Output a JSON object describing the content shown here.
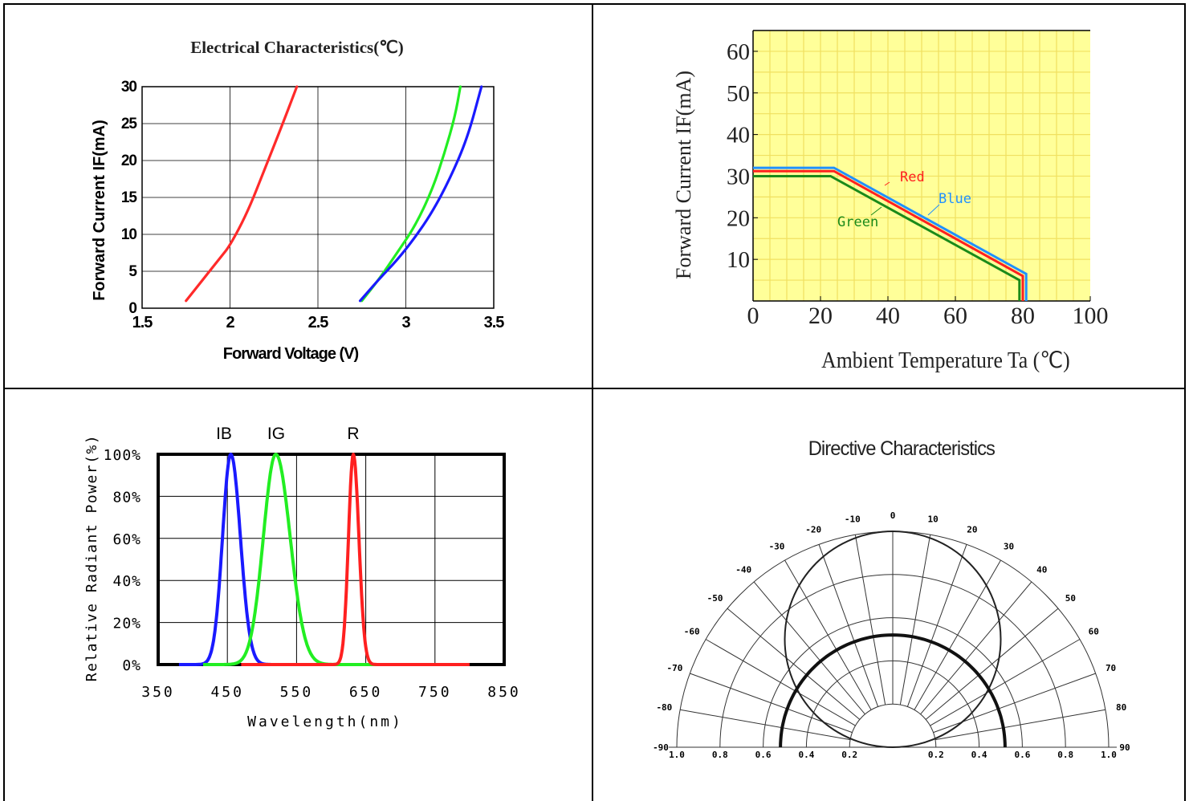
{
  "chart_data": [
    {
      "type": "line",
      "title": "Electrical Characteristics(℃)",
      "xlabel": "Forward Voltage (V)",
      "ylabel": "Forward Current IF(mA)",
      "xlim": [
        1.5,
        3.5
      ],
      "ylim": [
        0,
        30
      ],
      "xticks": [
        "1.5",
        "2",
        "2.5",
        "3",
        "3.5"
      ],
      "yticks": [
        "0",
        "5",
        "10",
        "15",
        "20",
        "25",
        "30"
      ],
      "grid": true,
      "series": [
        {
          "color": "#ff2a2a",
          "x": [
            1.75,
            1.85,
            1.95,
            2.0,
            2.1,
            2.2,
            2.3,
            2.38
          ],
          "y": [
            1,
            4,
            7,
            8.5,
            13,
            19,
            25,
            30
          ]
        },
        {
          "color": "#22ee22",
          "x": [
            2.75,
            2.85,
            2.95,
            3.05,
            3.15,
            3.22,
            3.28,
            3.31
          ],
          "y": [
            1,
            4,
            7.5,
            11,
            16,
            21,
            26,
            30
          ]
        },
        {
          "color": "#1a1aff",
          "x": [
            2.74,
            2.85,
            2.95,
            3.05,
            3.15,
            3.25,
            3.35,
            3.43
          ],
          "y": [
            1,
            4,
            6.5,
            9.5,
            13,
            17.5,
            23,
            30
          ]
        }
      ]
    },
    {
      "type": "line",
      "title": "",
      "xlabel": "Ambient Temperature Ta (℃)",
      "ylabel": "Forward Current IF(mA)",
      "xlim": [
        0,
        100
      ],
      "ylim": [
        0,
        65
      ],
      "xticks": [
        "0",
        "20",
        "40",
        "60",
        "80",
        "100"
      ],
      "yticks": [
        "10",
        "20",
        "30",
        "40",
        "50",
        "60"
      ],
      "grid": true,
      "series": [
        {
          "name": "Red",
          "color": "#ff2020",
          "x": [
            0,
            24,
            80,
            80
          ],
          "y": [
            31.2,
            31.2,
            6,
            0
          ]
        },
        {
          "name": "Blue",
          "color": "#2090ff",
          "x": [
            0,
            24,
            81,
            81
          ],
          "y": [
            32,
            32,
            6.5,
            0
          ]
        },
        {
          "name": "Green",
          "color": "#1a8a1a",
          "x": [
            0,
            23,
            79,
            79
          ],
          "y": [
            30,
            30,
            5,
            0
          ]
        }
      ],
      "annotations": [
        "Red",
        "Blue",
        "Green"
      ]
    },
    {
      "type": "line",
      "title": "",
      "xlabel": "Wavelength(nm)",
      "ylabel": "Relative Radiant Power(%)",
      "xlim": [
        350,
        850
      ],
      "ylim": [
        0,
        100
      ],
      "xticks": [
        "350",
        "450",
        "550",
        "650",
        "750",
        "850"
      ],
      "yticks": [
        "0%",
        "20%",
        "40%",
        "60%",
        "80%",
        "100%"
      ],
      "grid": true,
      "series": [
        {
          "name": "IB",
          "color": "#1a1aff",
          "peak": 455,
          "halfwidth": 12,
          "range": [
            380,
            620
          ]
        },
        {
          "name": "IG",
          "color": "#22ee22",
          "peak": 520,
          "halfwidth": 18,
          "range": [
            415,
            710
          ]
        },
        {
          "name": "R",
          "color": "#ff2020",
          "peak": 632,
          "halfwidth": 7,
          "range": [
            470,
            800
          ]
        }
      ]
    },
    {
      "type": "polar",
      "title": "Directive Characteristics",
      "angles": [
        "-90",
        "-80",
        "-70",
        "-60",
        "-50",
        "-40",
        "-30",
        "-20",
        "-10",
        "0",
        "10",
        "20",
        "30",
        "40",
        "50",
        "60",
        "70",
        "80",
        "90"
      ],
      "radial_ticks": [
        "1.0",
        "0.8",
        "0.6",
        "0.4",
        "0.2",
        "0.2",
        "0.4",
        "0.6",
        "0.8",
        "1.0"
      ]
    }
  ]
}
